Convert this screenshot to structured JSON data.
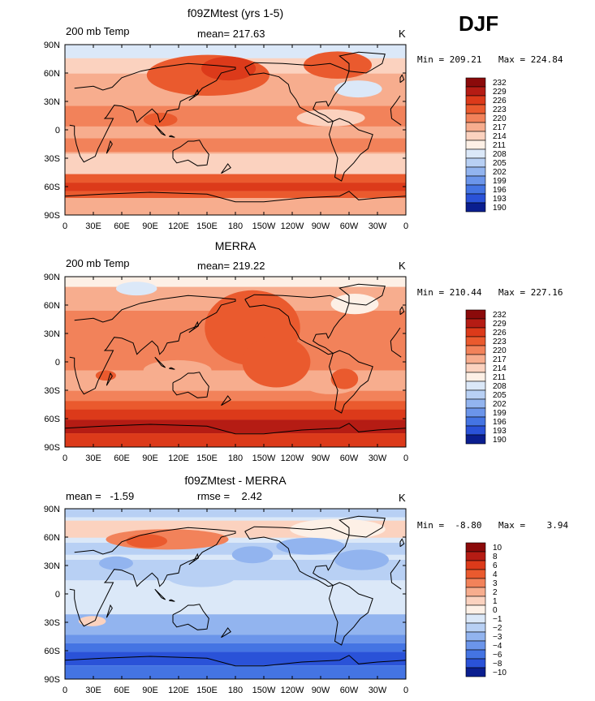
{
  "season": "DJF",
  "map_x_ticks": [
    "0",
    "30E",
    "60E",
    "90E",
    "120E",
    "150E",
    "180",
    "150W",
    "120W",
    "90W",
    "60W",
    "30W",
    "0"
  ],
  "map_y_ticks": [
    "90N",
    "60N",
    "30N",
    "0",
    "30S",
    "60S",
    "90S"
  ],
  "panels": [
    {
      "title": "f09ZMtest (yrs 1-5)",
      "left_label": "200 mb Temp",
      "center_label": "mean= 217.63",
      "right_label": "K",
      "min_label": "Min = 209.21",
      "max_label": "Max = 224.84",
      "levels": [
        "232",
        "229",
        "226",
        "223",
        "220",
        "217",
        "214",
        "211",
        "208",
        "205",
        "202",
        "199",
        "196",
        "193",
        "190"
      ]
    },
    {
      "title": "MERRA",
      "left_label": "200 mb Temp",
      "center_label": "mean= 219.22",
      "right_label": "K",
      "min_label": "Min = 210.44",
      "max_label": "Max = 227.16",
      "levels": [
        "232",
        "229",
        "226",
        "223",
        "220",
        "217",
        "214",
        "211",
        "208",
        "205",
        "202",
        "199",
        "196",
        "193",
        "190"
      ]
    },
    {
      "title": "f09ZMtest - MERRA",
      "left_label": "mean =   -1.59",
      "center_label": "rmse =    2.42",
      "right_label": "K",
      "min_label": "Min =  -8.80",
      "max_label": "Max =    3.94",
      "levels": [
        "10",
        "8",
        "6",
        "4",
        "3",
        "2",
        "1",
        "0",
        "−1",
        "−2",
        "−3",
        "−4",
        "−6",
        "−8",
        "−10"
      ]
    }
  ],
  "colorbar_colors": [
    "#8b0a0a",
    "#b51c14",
    "#dc3a1a",
    "#ea5a2e",
    "#f2825a",
    "#f7ad8e",
    "#fbd2bf",
    "#fdf0e6",
    "#dbe8f8",
    "#b8d0f4",
    "#92b4ef",
    "#6b95ea",
    "#4474e3",
    "#2a52d8",
    "#0a1e8f"
  ]
}
